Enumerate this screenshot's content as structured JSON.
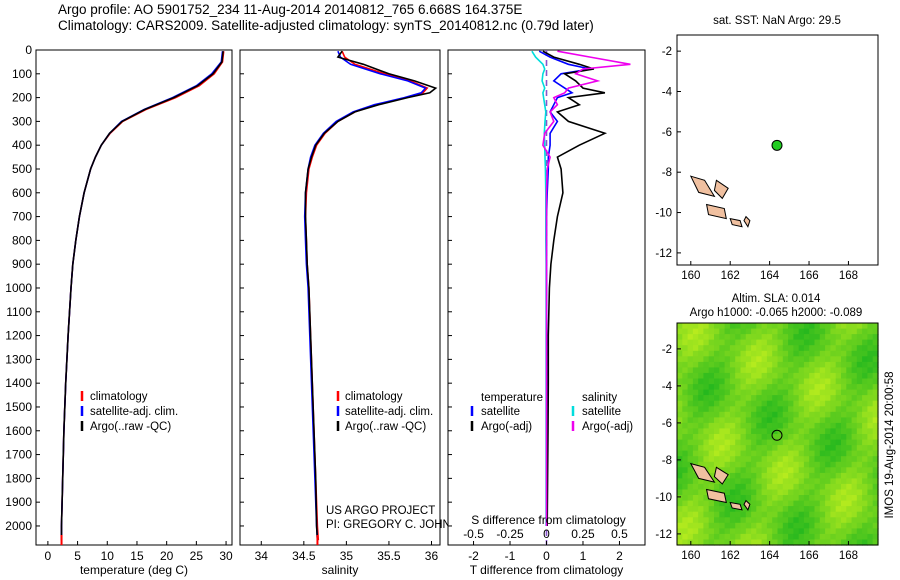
{
  "header": {
    "line1": "Argo profile: AO 5901752_234 11-Aug-2014 20140812_765 6.668S 164.375E",
    "line2": "Climatology: CARS2009. Satellite-adjusted climatology: synTS_20140812.nc (0.79d later)"
  },
  "chart_data": [
    {
      "type": "line",
      "name": "temperature-profile",
      "xlabel": "temperature (deg C)",
      "ylabel": "",
      "xlim": [
        -2,
        31
      ],
      "ylim": [
        2080,
        0
      ],
      "xticks": [
        0,
        5,
        10,
        15,
        20,
        25,
        30
      ],
      "yticks": [
        0,
        100,
        200,
        300,
        400,
        500,
        600,
        700,
        800,
        900,
        1000,
        1100,
        1200,
        1300,
        1400,
        1500,
        1600,
        1700,
        1800,
        1900,
        2000
      ],
      "legend": {
        "placement": "bottom-left",
        "entries": [
          "climatology",
          "satellite-adj. clim.",
          "Argo(..raw -QC)"
        ]
      },
      "depth": [
        5,
        50,
        100,
        150,
        200,
        250,
        300,
        350,
        400,
        450,
        500,
        600,
        700,
        800,
        900,
        1000,
        1200,
        1400,
        1600,
        1800,
        2000,
        2060
      ],
      "series": [
        {
          "name": "climatology",
          "color": "#ff0000",
          "values": [
            29.6,
            29.4,
            28.0,
            25.5,
            21.5,
            16.5,
            12.6,
            10.5,
            9.0,
            8.0,
            7.2,
            6.1,
            5.3,
            4.7,
            4.2,
            3.9,
            3.4,
            3.0,
            2.7,
            2.5,
            2.3,
            2.3
          ]
        },
        {
          "name": "satellite-adj. clim.",
          "color": "#0000ff",
          "values": [
            29.4,
            29.2,
            27.6,
            25.0,
            21.0,
            16.2,
            12.4,
            10.4,
            9.0,
            8.0,
            7.2,
            6.1,
            5.3,
            4.7,
            4.2,
            3.9,
            3.4,
            3.0,
            2.7,
            2.5,
            2.3,
            2.3
          ]
        },
        {
          "name": "Argo(..raw -QC)",
          "color": "#000000",
          "values": [
            29.5,
            29.3,
            27.8,
            25.2,
            21.2,
            16.3,
            12.5,
            10.4,
            9.0,
            8.0,
            7.2,
            6.1,
            5.3,
            4.7,
            4.2,
            3.9,
            3.4,
            3.0,
            2.7,
            2.5,
            2.3,
            2.3
          ]
        }
      ]
    },
    {
      "type": "line",
      "name": "salinity-profile",
      "xlabel": "salinity",
      "xlim": [
        33.75,
        36.1
      ],
      "ylim": [
        2080,
        0
      ],
      "xticks": [
        34,
        34.5,
        35,
        35.5,
        36
      ],
      "legend": {
        "placement": "bottom-right",
        "entries": [
          "climatology",
          "satellite-adj. clim.",
          "Argo(..raw -QC)"
        ]
      },
      "annotation": [
        "US ARGO PROJECT",
        "PI: GREGORY C. JOHNSON"
      ],
      "depth": [
        5,
        30,
        60,
        100,
        130,
        160,
        180,
        200,
        230,
        260,
        300,
        350,
        400,
        450,
        500,
        600,
        700,
        800,
        900,
        1000,
        1200,
        1400,
        1600,
        1800,
        2000,
        2060
      ],
      "series": [
        {
          "name": "climatology",
          "color": "#ff0000",
          "values": [
            34.95,
            34.98,
            35.1,
            35.45,
            35.75,
            35.95,
            35.9,
            35.7,
            35.35,
            35.1,
            34.9,
            34.75,
            34.65,
            34.6,
            34.56,
            34.53,
            34.52,
            34.53,
            34.54,
            34.56,
            34.58,
            34.6,
            34.62,
            34.64,
            34.66,
            34.67
          ]
        },
        {
          "name": "satellite-adj. clim.",
          "color": "#0000ff",
          "values": [
            34.9,
            34.93,
            35.05,
            35.4,
            35.72,
            35.93,
            35.88,
            35.68,
            35.33,
            35.08,
            34.88,
            34.73,
            34.63,
            34.58,
            34.55,
            34.52,
            34.51,
            34.52,
            34.53,
            34.55,
            34.57,
            34.59,
            34.61,
            34.63,
            34.65,
            34.66
          ]
        },
        {
          "name": "Argo(..raw -QC)",
          "color": "#000000",
          "values": [
            34.95,
            34.9,
            35.2,
            35.5,
            35.8,
            36.05,
            35.98,
            35.72,
            35.38,
            35.1,
            34.9,
            34.74,
            34.64,
            34.59,
            34.55,
            34.52,
            34.52,
            34.53,
            34.54,
            34.56,
            34.58,
            34.6,
            34.62,
            34.64,
            34.65,
            34.66
          ]
        }
      ]
    },
    {
      "type": "line",
      "name": "difference-profile",
      "xlabel": "T difference from climatology",
      "xlabel_top": "S difference from climatology",
      "xlim": [
        -2.7,
        2.7
      ],
      "ylim": [
        2080,
        0
      ],
      "xticks": [
        -2,
        -1,
        0,
        1,
        2
      ],
      "xticks_s": [
        -0.5,
        -0.25,
        0,
        0.25,
        0.5
      ],
      "legend": {
        "placement": "bottom",
        "entries": [
          "temperature",
          "satellite",
          "Argo(-adj)",
          "salinity",
          "satellite",
          "Argo(-adj)"
        ]
      },
      "depth": [
        5,
        30,
        60,
        80,
        100,
        130,
        160,
        180,
        200,
        230,
        260,
        300,
        350,
        400,
        450,
        500,
        600,
        700,
        800,
        900,
        1000,
        1200,
        1400,
        1600,
        1800,
        2000
      ],
      "series": [
        {
          "name": "temperature satellite",
          "color": "#0000ff",
          "values": [
            -0.2,
            0.1,
            0.6,
            1.2,
            0.4,
            0.2,
            0.5,
            0.7,
            0.3,
            0.2,
            0.1,
            0.3,
            0.1,
            0.1,
            0.05,
            0.05,
            0.02,
            0.0,
            0.0,
            0.0,
            0.0,
            0.0,
            0.0,
            0.0,
            0.0,
            0.0
          ]
        },
        {
          "name": "temperature Argo(-adj)",
          "color": "#000000",
          "values": [
            -0.1,
            0.2,
            0.9,
            1.3,
            0.5,
            0.8,
            1.0,
            1.6,
            0.6,
            0.9,
            0.3,
            0.6,
            1.6,
            0.9,
            0.3,
            0.4,
            0.45,
            0.3,
            0.2,
            0.12,
            0.08,
            0.05,
            0.05,
            0.04,
            0.03,
            0.02
          ]
        },
        {
          "name": "salinity satellite",
          "color": "#00dddd",
          "values": [
            -0.4,
            -0.3,
            -0.1,
            -0.05,
            -0.1,
            -0.12,
            -0.05,
            -0.1,
            -0.08,
            -0.05,
            -0.02,
            -0.04,
            -0.06,
            -0.05,
            -0.04,
            -0.03,
            -0.02,
            -0.02,
            -0.02,
            -0.01,
            -0.01,
            -0.01,
            -0.01,
            -0.01,
            -0.01,
            -0.01
          ]
        },
        {
          "name": "salinity Argo(-adj)",
          "color": "#ee00ee",
          "values": [
            0.3,
            1.2,
            2.3,
            1.0,
            0.8,
            1.4,
            0.6,
            0.5,
            0.2,
            0.3,
            0.1,
            0.2,
            -0.05,
            -0.1,
            0.1,
            0.02,
            0.0,
            0.0,
            0.0,
            0.0,
            0.0,
            0.0,
            0.0,
            0.0,
            0.0,
            0.0
          ]
        }
      ]
    },
    {
      "type": "scatter",
      "name": "sst-map",
      "title": "sat. SST: NaN Argo: 29.5",
      "xlim": [
        159.3,
        169.5
      ],
      "ylim": [
        -12.6,
        -1.2
      ],
      "xticks": [
        160,
        162,
        164,
        166,
        168
      ],
      "yticks": [
        -2,
        -4,
        -6,
        -8,
        -10,
        -12
      ],
      "marker": {
        "lon": 164.375,
        "lat": -6.668,
        "color": "#22cc22"
      }
    },
    {
      "type": "heatmap",
      "name": "sla-map",
      "title": [
        "Altim. SLA: 0.014",
        "Argo h1000: -0.065 h2000: -0.089"
      ],
      "xlim": [
        159.3,
        169.5
      ],
      "ylim": [
        -12.6,
        -0.6
      ],
      "xticks": [
        160,
        162,
        164,
        166,
        168
      ],
      "yticks": [
        -2,
        -4,
        -6,
        -8,
        -10,
        -12
      ],
      "marker": {
        "lon": 164.375,
        "lat": -6.668
      }
    }
  ],
  "credit": "IMOS 19-Aug-2014 20:00:58"
}
